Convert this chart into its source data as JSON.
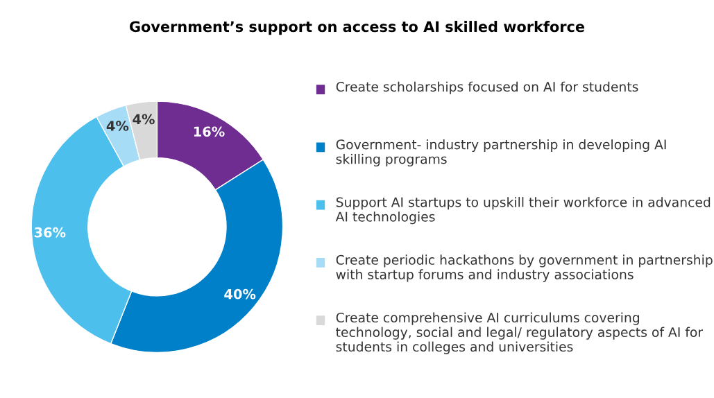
{
  "chart_data": {
    "type": "donut",
    "title": "Government’s support on access to AI skilled workforce",
    "categories": [
      "Create scholarships focused on AI for students",
      "Government- industry partnership in developing AI skilling programs",
      "Support AI startups to upskill their workforce in advanced AI technologies",
      "Create periodic hackathons by government in partnership with startup forums and industry associations",
      "Create comprehensive AI curriculums covering technology, social and legal/ regulatory aspects of AI for students in colleges and universities"
    ],
    "values": [
      16,
      40,
      36,
      4,
      4
    ],
    "colors": [
      "#6f2c91",
      "#0080c9",
      "#4dbfed",
      "#a6dcf5",
      "#d9d9d9"
    ],
    "value_labels": [
      "16%",
      "40%",
      "36%",
      "4%",
      "4%"
    ],
    "legend": "right"
  }
}
